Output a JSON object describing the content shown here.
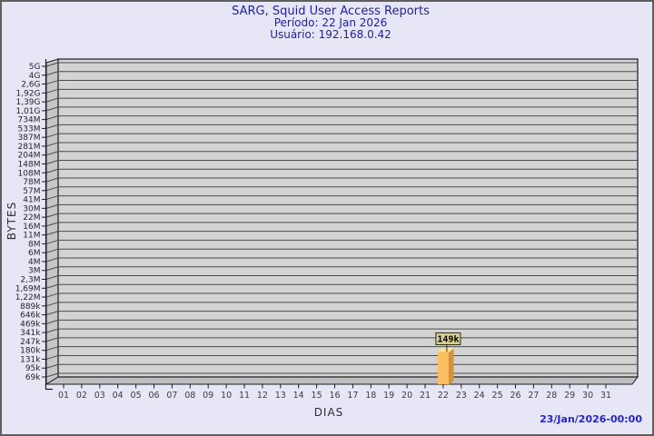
{
  "header": {
    "title": "SARG, Squid User Access Reports",
    "period": "Período: 22 Jan 2026",
    "user": "Usuário: 192.168.0.42"
  },
  "footer": {
    "timestamp": "23/Jan/2026-00:00"
  },
  "colors": {
    "background": "#e6e6f6",
    "frame_border": "#5f5f5f",
    "title_text": "#22229b",
    "timestamp_text": "#2525c8",
    "axis_text": "#2e2e2e",
    "tick_text": "#333333",
    "plot_fill": "#d3d3d3",
    "wall_fill": "#c6c6ca",
    "floor_fill": "#bfbfc3",
    "grid_line": "#4b4b4b",
    "plot_border": "#1c1c1c",
    "bar_front": "#fcbe62",
    "bar_side": "#d2943a",
    "bar_top": "#ffe189",
    "value_box_fill": "#d8cf8e",
    "value_box_border": "#2b2b1e",
    "value_text": "#000000"
  },
  "chart_data": {
    "type": "bar",
    "title": "SARG, Squid User Access Reports",
    "subtitle_period": "Período: 22 Jan 2026",
    "subtitle_user": "Usuário: 192.168.0.42",
    "xlabel": "DIAS",
    "ylabel": "BYTES",
    "y_scale": "geometric (log-like), ticks from 69k to 5G",
    "y_tick_labels": [
      "5G",
      "4G",
      "2,6G",
      "1,92G",
      "1,39G",
      "1,01G",
      "734M",
      "533M",
      "387M",
      "281M",
      "204M",
      "148M",
      "108M",
      "78M",
      "57M",
      "41M",
      "30M",
      "22M",
      "16M",
      "11M",
      "8M",
      "6M",
      "4M",
      "3M",
      "2,3M",
      "1,69M",
      "1,22M",
      "889k",
      "646k",
      "469k",
      "341k",
      "247k",
      "180k",
      "131k",
      "95k",
      "69k"
    ],
    "y_min_bytes": 69000,
    "y_max_bytes": 5000000000,
    "categories": [
      "01",
      "02",
      "03",
      "04",
      "05",
      "06",
      "07",
      "08",
      "09",
      "10",
      "11",
      "12",
      "13",
      "14",
      "15",
      "16",
      "17",
      "18",
      "19",
      "20",
      "21",
      "22",
      "23",
      "24",
      "25",
      "26",
      "27",
      "28",
      "29",
      "30",
      "31"
    ],
    "bars": [
      {
        "day": "22",
        "value_label": "149k",
        "value_bytes": 149000
      }
    ],
    "legend": "none",
    "grid": "horizontal lines at every y tick",
    "style": "3D column chart with left wall and floor"
  }
}
